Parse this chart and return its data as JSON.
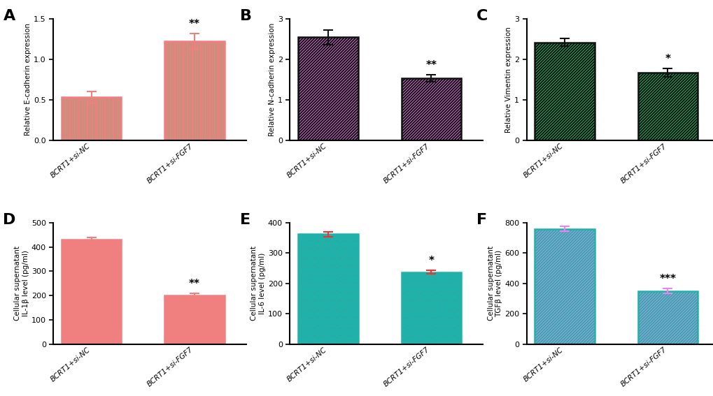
{
  "panels": [
    {
      "label": "A",
      "ylabel": "Relative E-cadherin expression",
      "categories": [
        "BCRT1+si-NC",
        "BCRT1+si-FGF7"
      ],
      "values": [
        0.53,
        1.22
      ],
      "errors": [
        0.07,
        0.1
      ],
      "ylim": [
        0,
        1.5
      ],
      "yticks": [
        0.0,
        0.5,
        1.0,
        1.5
      ],
      "sig_idx": 1,
      "sig_text": "**",
      "bar_facecolor": "#2ECC71",
      "bar_edgecolor": "#F08080",
      "hatch": "|||||||",
      "err_color": "#F08080"
    },
    {
      "label": "B",
      "ylabel": "Relative N-cadherin expression",
      "categories": [
        "BCRT1+si-NC",
        "BCRT1+si-FGF7"
      ],
      "values": [
        2.55,
        1.53
      ],
      "errors": [
        0.18,
        0.09
      ],
      "ylim": [
        0,
        3
      ],
      "yticks": [
        0,
        1,
        2,
        3
      ],
      "sig_idx": 1,
      "sig_text": "**",
      "bar_facecolor": "#EE82EE",
      "bar_edgecolor": "#111111",
      "hatch": "////////",
      "err_color": "#111111"
    },
    {
      "label": "C",
      "ylabel": "Relative Vimentin expression",
      "categories": [
        "BCRT1+si-NC",
        "BCRT1+si-FGF7"
      ],
      "values": [
        2.42,
        1.67
      ],
      "errors": [
        0.1,
        0.1
      ],
      "ylim": [
        0,
        3
      ],
      "yticks": [
        0,
        1,
        2,
        3
      ],
      "sig_idx": 1,
      "sig_text": "*",
      "bar_facecolor": "#2ECC71",
      "bar_edgecolor": "#111111",
      "hatch": "////////",
      "err_color": "#111111"
    },
    {
      "label": "D",
      "ylabel": "Cellular supernatant\nIL-1β level (pg/ml)",
      "categories": [
        "BCRT1+si-NC",
        "BCRT1+si-FGF7"
      ],
      "values": [
        430,
        200
      ],
      "errors": [
        8,
        8
      ],
      "ylim": [
        0,
        500
      ],
      "yticks": [
        0,
        100,
        200,
        300,
        400,
        500
      ],
      "sig_idx": 1,
      "sig_text": "**",
      "bar_facecolor": "#2222EE",
      "bar_edgecolor": "#F08080",
      "hatch": "-----------",
      "err_color": "#F08080"
    },
    {
      "label": "E",
      "ylabel": "Cellular supernatant\nIL-6 level (pg/ml)",
      "categories": [
        "BCRT1+si-NC",
        "BCRT1+si-FGF7"
      ],
      "values": [
        362,
        237
      ],
      "errors": [
        8,
        6
      ],
      "ylim": [
        0,
        400
      ],
      "yticks": [
        0,
        100,
        200,
        300,
        400
      ],
      "sig_idx": 1,
      "sig_text": "*",
      "bar_facecolor": "#EE3333",
      "bar_edgecolor": "#20B2AA",
      "hatch": "oooooo",
      "err_color": "#EE3333"
    },
    {
      "label": "F",
      "ylabel": "Cellular supernatant\nTGFβ level (pg/ml)",
      "categories": [
        "BCRT1+si-NC",
        "BCRT1+si-FGF7"
      ],
      "values": [
        760,
        350
      ],
      "errors": [
        15,
        15
      ],
      "ylim": [
        0,
        800
      ],
      "yticks": [
        0,
        200,
        400,
        600,
        800
      ],
      "sig_idx": 1,
      "sig_text": "***",
      "bar_facecolor": "#EE82EE",
      "bar_edgecolor": "#20B2AA",
      "hatch": "////////",
      "err_color": "#EE82EE"
    }
  ],
  "background_color": "#FFFFFF"
}
